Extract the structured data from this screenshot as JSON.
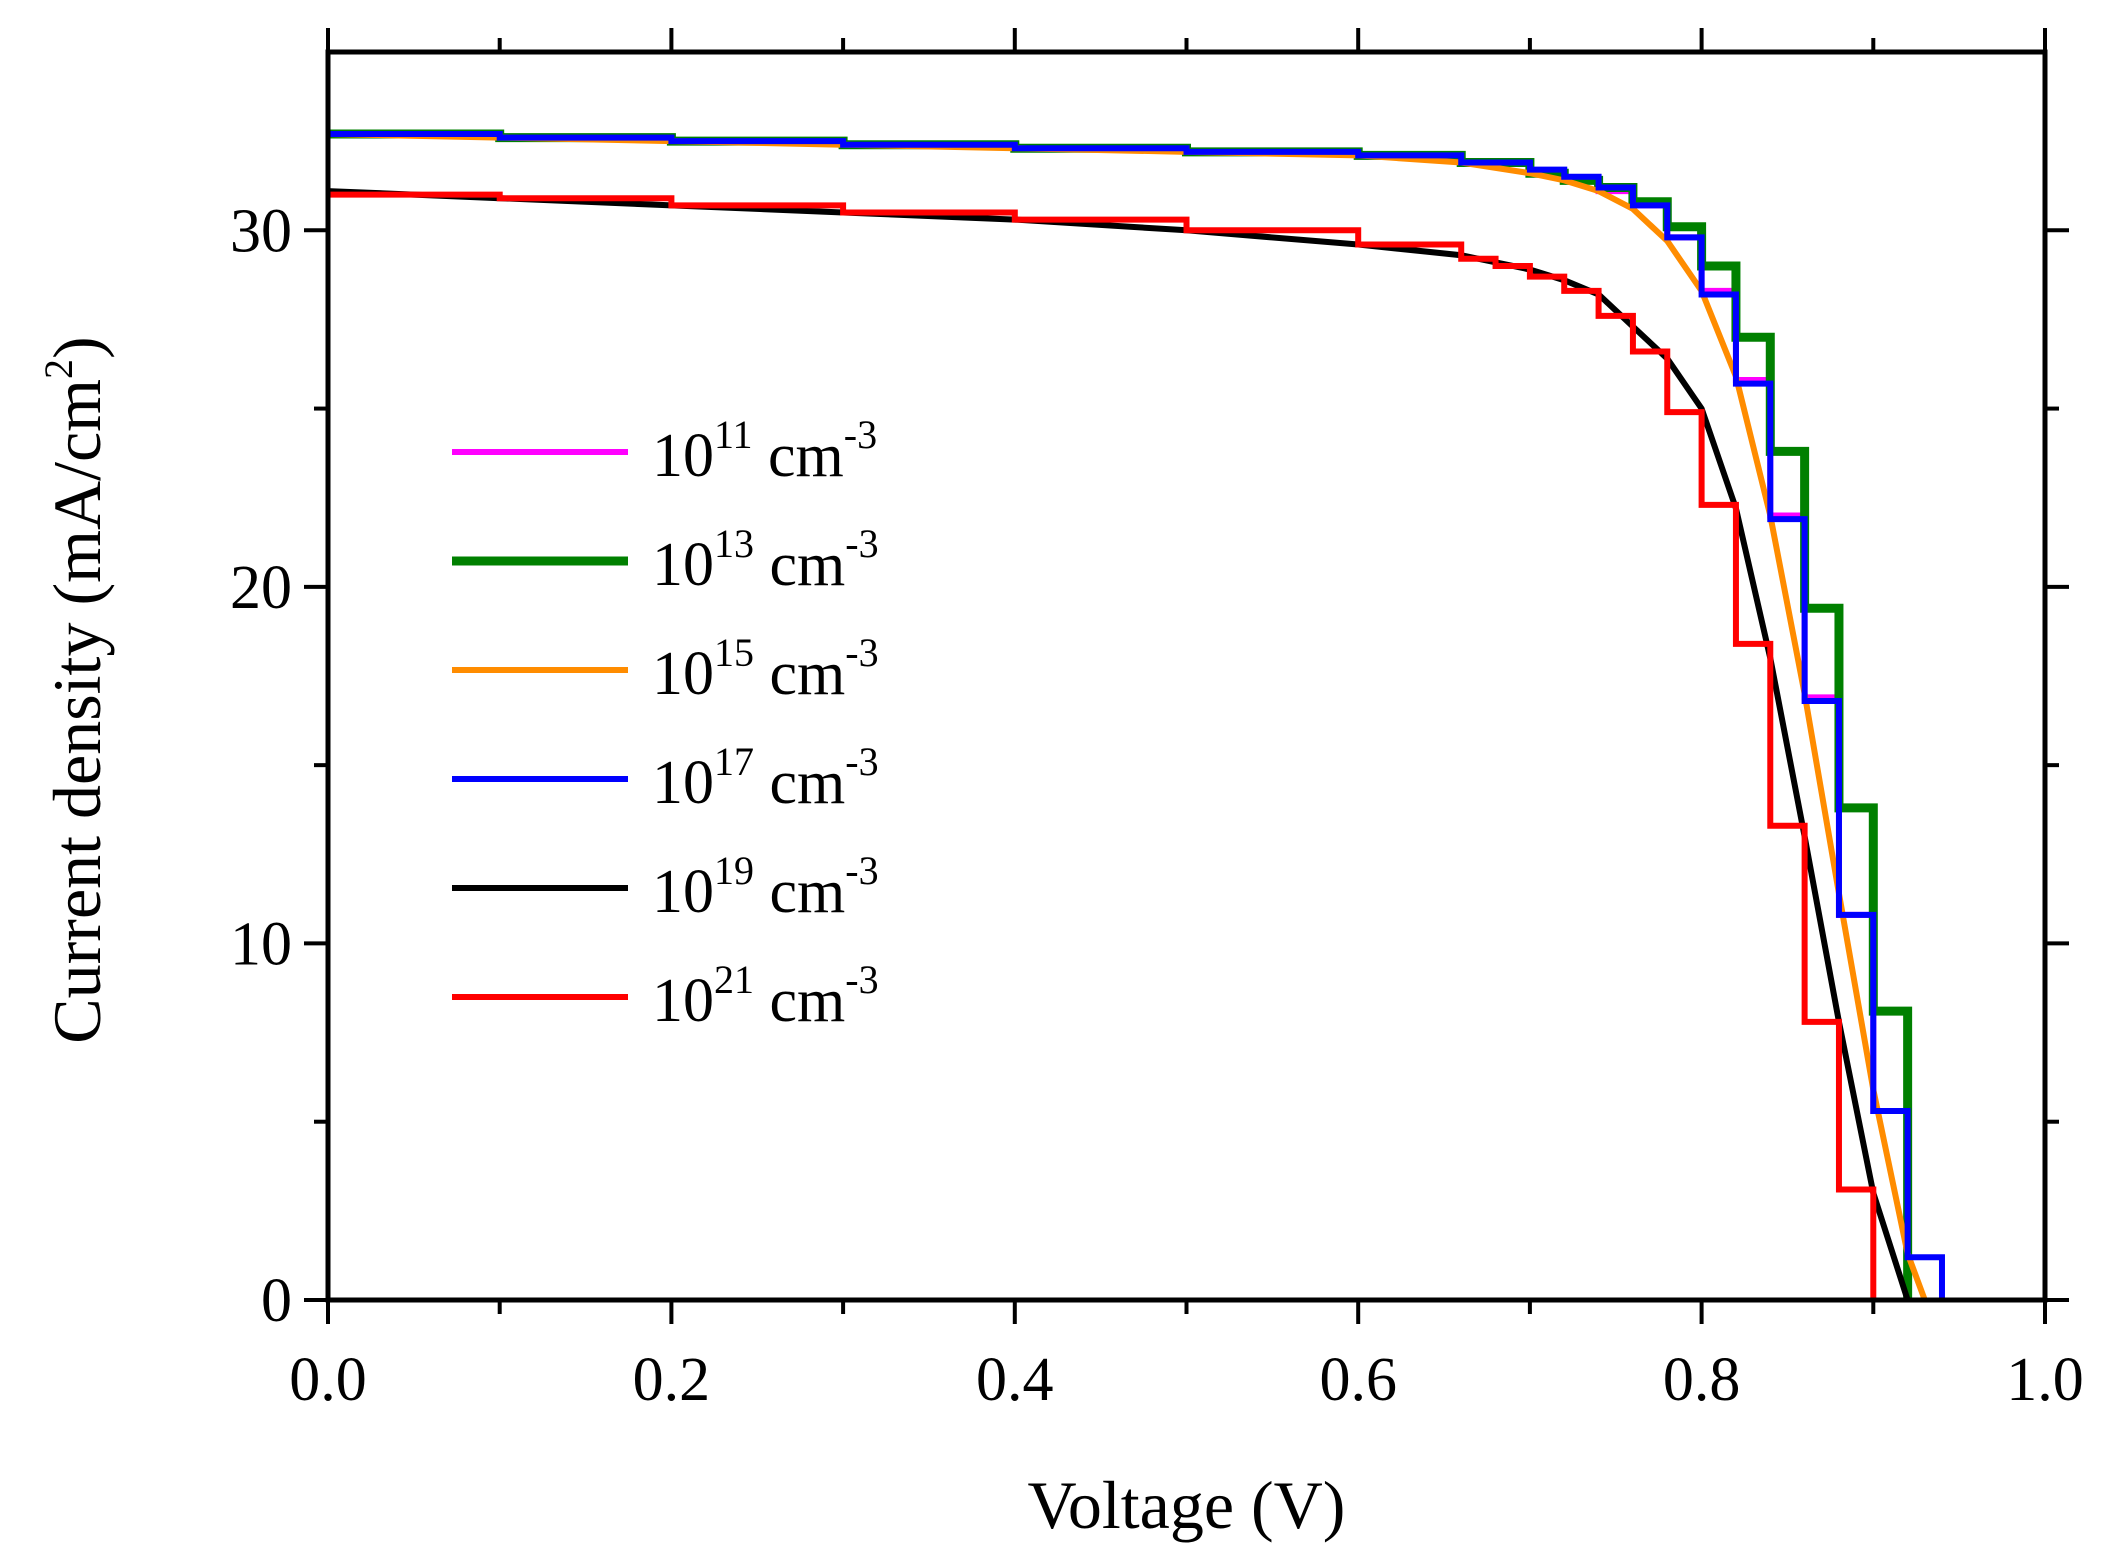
{
  "chart_data": {
    "type": "line",
    "title": "",
    "xlabel": "Voltage (V)",
    "ylabel": {
      "main": "Current density  (mA/cm",
      "sup": "2",
      "close": ")"
    },
    "xlim": [
      0.0,
      1.0
    ],
    "ylim": [
      0,
      35
    ],
    "xticks": [
      0.0,
      0.2,
      0.4,
      0.6,
      0.8,
      1.0
    ],
    "xtick_labels": [
      "0.0",
      "0.2",
      "0.4",
      "0.6",
      "0.8",
      "1.0"
    ],
    "yticks": [
      0,
      10,
      20,
      30
    ],
    "ytick_labels": [
      "0",
      "10",
      "20",
      "30"
    ],
    "x_minor_ticks": [
      0.1,
      0.3,
      0.5,
      0.7,
      0.9
    ],
    "y_minor_ticks": [
      5,
      15,
      25
    ],
    "grid": false,
    "legend_position": "center-left",
    "series": [
      {
        "name": "10^11 cm^-3",
        "label_base": "10",
        "label_exp": "11",
        "label_unit": "cm",
        "label_unit_exp": "-3",
        "color": "#ff00ff",
        "style": "step",
        "weight": "normal",
        "x": [
          0.0,
          0.1,
          0.2,
          0.3,
          0.4,
          0.5,
          0.6,
          0.66,
          0.7,
          0.72,
          0.74,
          0.76,
          0.78,
          0.8,
          0.82,
          0.84,
          0.86,
          0.88,
          0.9,
          0.92
        ],
        "y": [
          32.7,
          32.6,
          32.5,
          32.4,
          32.3,
          32.2,
          32.1,
          31.9,
          31.6,
          31.4,
          31.1,
          30.7,
          29.8,
          28.3,
          25.8,
          22.0,
          16.9,
          10.8,
          5.3,
          1.2
        ]
      },
      {
        "name": "10^13 cm^-3",
        "label_base": "10",
        "label_exp": "13",
        "label_unit": "cm",
        "label_unit_exp": "-3",
        "color": "#008000",
        "style": "step",
        "weight": "bold",
        "x": [
          0.0,
          0.1,
          0.2,
          0.3,
          0.4,
          0.5,
          0.6,
          0.66,
          0.7,
          0.72,
          0.74,
          0.76,
          0.78,
          0.8,
          0.82,
          0.84,
          0.86,
          0.88,
          0.9,
          0.92
        ],
        "y": [
          32.7,
          32.6,
          32.5,
          32.4,
          32.3,
          32.2,
          32.1,
          31.9,
          31.6,
          31.4,
          31.2,
          30.8,
          30.1,
          29.0,
          27.0,
          23.8,
          19.4,
          13.8,
          8.1,
          3.3
        ]
      },
      {
        "name": "10^15 cm^-3",
        "label_base": "10",
        "label_exp": "15",
        "label_unit": "cm",
        "label_unit_exp": "-3",
        "color": "#ff8c00",
        "style": "line",
        "weight": "normal",
        "x": [
          0.0,
          0.1,
          0.2,
          0.3,
          0.4,
          0.5,
          0.6,
          0.66,
          0.7,
          0.72,
          0.74,
          0.76,
          0.78,
          0.8,
          0.82,
          0.84,
          0.86,
          0.88,
          0.9,
          0.92,
          0.93
        ],
        "y": [
          32.7,
          32.6,
          32.5,
          32.4,
          32.3,
          32.2,
          32.1,
          31.9,
          31.6,
          31.4,
          31.1,
          30.6,
          29.7,
          28.3,
          25.9,
          22.0,
          17.0,
          11.4,
          5.9,
          1.3,
          0.0
        ]
      },
      {
        "name": "10^17 cm^-3",
        "label_base": "10",
        "label_exp": "17",
        "label_unit": "cm",
        "label_unit_exp": "-3",
        "color": "#0000ff",
        "style": "step",
        "weight": "normal",
        "x": [
          0.0,
          0.1,
          0.2,
          0.3,
          0.4,
          0.5,
          0.6,
          0.66,
          0.7,
          0.72,
          0.74,
          0.76,
          0.78,
          0.8,
          0.82,
          0.84,
          0.86,
          0.88,
          0.9,
          0.92,
          0.94
        ],
        "y": [
          32.7,
          32.6,
          32.5,
          32.4,
          32.3,
          32.2,
          32.1,
          31.9,
          31.7,
          31.5,
          31.2,
          30.7,
          29.8,
          28.2,
          25.7,
          21.9,
          16.8,
          10.8,
          5.3,
          1.2,
          0.0
        ]
      },
      {
        "name": "10^19 cm^-3",
        "label_base": "10",
        "label_exp": "19",
        "label_unit": "cm",
        "label_unit_exp": "-3",
        "color": "#000000",
        "style": "line",
        "weight": "normal",
        "x": [
          0.0,
          0.1,
          0.2,
          0.3,
          0.4,
          0.5,
          0.6,
          0.66,
          0.7,
          0.72,
          0.74,
          0.76,
          0.78,
          0.8,
          0.82,
          0.84,
          0.86,
          0.88,
          0.9,
          0.92
        ],
        "y": [
          31.1,
          30.9,
          30.7,
          30.5,
          30.3,
          30.0,
          29.6,
          29.3,
          28.9,
          28.6,
          28.2,
          27.3,
          26.4,
          25.0,
          22.2,
          18.0,
          13.0,
          7.8,
          3.0,
          0.0
        ]
      },
      {
        "name": "10^21 cm^-3",
        "label_base": "10",
        "label_exp": "21",
        "label_unit": "cm",
        "label_unit_exp": "-3",
        "color": "#ff0000",
        "style": "step",
        "weight": "normal",
        "x": [
          0.0,
          0.1,
          0.2,
          0.3,
          0.4,
          0.5,
          0.6,
          0.66,
          0.68,
          0.7,
          0.72,
          0.74,
          0.76,
          0.78,
          0.8,
          0.82,
          0.84,
          0.86,
          0.88,
          0.9
        ],
        "y": [
          31.0,
          30.9,
          30.7,
          30.5,
          30.3,
          30.0,
          29.6,
          29.2,
          29.0,
          28.7,
          28.3,
          27.6,
          26.6,
          24.9,
          22.3,
          18.4,
          13.3,
          7.8,
          3.1,
          0.0
        ]
      }
    ]
  }
}
